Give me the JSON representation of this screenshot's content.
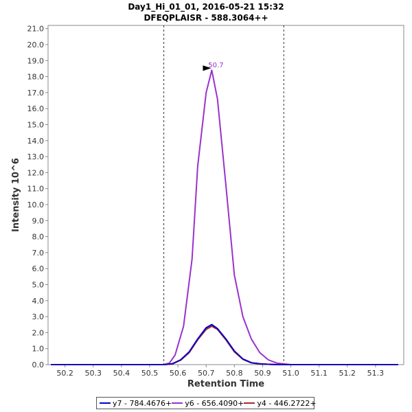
{
  "chart_data": {
    "type": "line",
    "title": "Day1_Hi_01_01, 2016-05-21 15:32",
    "subtitle": "DFEQPLAISR - 588.3064++",
    "xlabel": "Retention Time",
    "ylabel": "Intensity 10^6",
    "xlim": [
      50.14,
      51.4
    ],
    "ylim": [
      0,
      21.2
    ],
    "x_ticks": [
      "50.2",
      "50.3",
      "50.4",
      "50.5",
      "50.6",
      "50.7",
      "50.8",
      "50.9",
      "51.0",
      "51.1",
      "51.2",
      "51.3"
    ],
    "y_ticks": [
      "0.0",
      "1.0",
      "2.0",
      "3.0",
      "4.0",
      "5.0",
      "6.0",
      "7.0",
      "8.0",
      "9.0",
      "10.0",
      "11.0",
      "12.0",
      "13.0",
      "14.0",
      "15.0",
      "16.0",
      "17.0",
      "18.0",
      "19.0",
      "20.0",
      "21.0"
    ],
    "grid": false,
    "legend_position": "bottom",
    "boundaries": [
      50.55,
      50.975
    ],
    "annotation": {
      "text": "50.7",
      "x": 50.72,
      "y": 18.4,
      "color": "#9932cc"
    },
    "series": [
      {
        "name": "y7 - 784.4676+",
        "color": "#0000cc",
        "x": [
          50.15,
          50.2,
          50.3,
          50.4,
          50.5,
          50.55,
          50.58,
          50.61,
          50.64,
          50.67,
          50.7,
          50.72,
          50.74,
          50.77,
          50.8,
          50.83,
          50.86,
          50.89,
          50.92,
          50.95,
          51.0,
          51.1,
          51.2,
          51.38
        ],
        "y": [
          0.0,
          0.0,
          0.0,
          0.0,
          0.0,
          0.0,
          0.05,
          0.3,
          0.8,
          1.6,
          2.3,
          2.5,
          2.25,
          1.6,
          0.85,
          0.35,
          0.12,
          0.05,
          0.02,
          0.0,
          0.0,
          0.0,
          0.0,
          0.0
        ]
      },
      {
        "name": "y6 - 656.4090+",
        "color": "#9932cc",
        "x": [
          50.15,
          50.2,
          50.3,
          50.4,
          50.5,
          50.55,
          50.57,
          50.59,
          50.62,
          50.65,
          50.67,
          50.7,
          50.72,
          50.74,
          50.77,
          50.8,
          50.83,
          50.86,
          50.89,
          50.92,
          50.95,
          51.0,
          51.1,
          51.2,
          51.38
        ],
        "y": [
          0.0,
          0.0,
          0.0,
          0.0,
          0.0,
          0.0,
          0.1,
          0.6,
          2.4,
          6.6,
          12.4,
          17.0,
          18.4,
          16.6,
          11.2,
          5.6,
          3.0,
          1.6,
          0.75,
          0.3,
          0.1,
          0.0,
          0.0,
          0.0,
          0.0
        ]
      },
      {
        "name": "y4 - 446.2722+",
        "color": "#a52a2a",
        "x": [
          50.15,
          50.2,
          50.3,
          50.4,
          50.5,
          50.55,
          50.58,
          50.61,
          50.64,
          50.67,
          50.7,
          50.72,
          50.74,
          50.77,
          50.8,
          50.83,
          50.86,
          50.89,
          50.92,
          50.95,
          51.0,
          51.1,
          51.2,
          51.38
        ],
        "y": [
          0.0,
          0.0,
          0.0,
          0.0,
          0.0,
          0.0,
          0.04,
          0.28,
          0.75,
          1.55,
          2.2,
          2.4,
          2.2,
          1.55,
          0.8,
          0.33,
          0.11,
          0.04,
          0.02,
          0.0,
          0.0,
          0.0,
          0.0,
          0.0
        ]
      }
    ]
  }
}
